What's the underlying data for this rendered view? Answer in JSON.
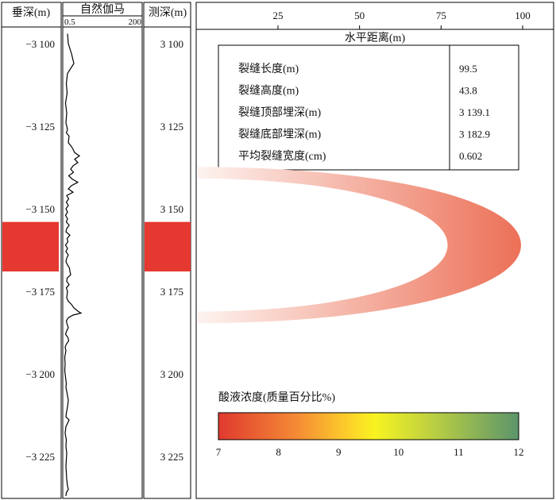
{
  "chart_data": {
    "type": "well-log-fracture-profile",
    "depth_axis": {
      "tvd_title": "垂深(m)",
      "md_title": "测深(m)",
      "tvd_ticks": [
        "−3 100",
        "−3 125",
        "−3 150",
        "−3 175",
        "−3 200",
        "−3 225"
      ],
      "md_ticks": [
        "3 100",
        "3 125",
        "3 150",
        "3 175",
        "3 200",
        "3 225"
      ],
      "tick_values": [
        3100,
        3125,
        3150,
        3175,
        3200,
        3225
      ],
      "range": [
        3096,
        3238
      ]
    },
    "gamma_track": {
      "title": "自然伽马",
      "min_label": "0.5",
      "max_label": "200",
      "range": [
        0.5,
        200
      ],
      "curve": [
        [
          3097,
          12
        ],
        [
          3100,
          14
        ],
        [
          3103,
          22
        ],
        [
          3106,
          28
        ],
        [
          3109,
          12
        ],
        [
          3112,
          9
        ],
        [
          3115,
          11
        ],
        [
          3118,
          7
        ],
        [
          3121,
          10
        ],
        [
          3124,
          8
        ],
        [
          3126,
          12
        ],
        [
          3127,
          9
        ],
        [
          3128,
          16
        ],
        [
          3129,
          15
        ],
        [
          3130,
          14
        ],
        [
          3131,
          21
        ],
        [
          3132,
          26
        ],
        [
          3133,
          30
        ],
        [
          3134,
          42
        ],
        [
          3135,
          30
        ],
        [
          3136,
          38
        ],
        [
          3137,
          26
        ],
        [
          3138,
          20
        ],
        [
          3139,
          27
        ],
        [
          3140,
          15
        ],
        [
          3141,
          24
        ],
        [
          3142,
          38
        ],
        [
          3143,
          22
        ],
        [
          3144,
          14
        ],
        [
          3145,
          26
        ],
        [
          3146,
          10
        ],
        [
          3147,
          15
        ],
        [
          3148,
          9
        ],
        [
          3149,
          14
        ],
        [
          3150,
          8
        ],
        [
          3151,
          12
        ],
        [
          3152,
          7
        ],
        [
          3153,
          12
        ],
        [
          3154,
          9
        ],
        [
          3155,
          16
        ],
        [
          3156,
          10
        ],
        [
          3157,
          8
        ],
        [
          3158,
          18
        ],
        [
          3159,
          11
        ],
        [
          3160,
          13
        ],
        [
          3161,
          7
        ],
        [
          3162,
          12
        ],
        [
          3163,
          8
        ],
        [
          3164,
          14
        ],
        [
          3165,
          10
        ],
        [
          3166,
          8
        ],
        [
          3167,
          12
        ],
        [
          3168,
          17
        ],
        [
          3169,
          18
        ],
        [
          3170,
          20
        ],
        [
          3171,
          11
        ],
        [
          3172,
          10
        ],
        [
          3173,
          16
        ],
        [
          3174,
          9
        ],
        [
          3175,
          12
        ],
        [
          3176,
          11
        ],
        [
          3177,
          10
        ],
        [
          3178,
          14
        ],
        [
          3179,
          22
        ],
        [
          3180,
          28
        ],
        [
          3181,
          38
        ],
        [
          3181.6,
          46
        ],
        [
          3182.2,
          26
        ],
        [
          3183,
          14
        ],
        [
          3184,
          9
        ],
        [
          3185,
          11
        ],
        [
          3186,
          14
        ],
        [
          3187,
          10
        ],
        [
          3188,
          7
        ],
        [
          3189,
          13
        ],
        [
          3190,
          15
        ],
        [
          3191,
          9
        ],
        [
          3192,
          6
        ],
        [
          3193,
          8
        ],
        [
          3195,
          5
        ],
        [
          3197,
          6
        ],
        [
          3199,
          5
        ],
        [
          3201,
          7
        ],
        [
          3203,
          9
        ],
        [
          3204,
          8
        ],
        [
          3206,
          11
        ],
        [
          3208,
          14
        ],
        [
          3210,
          12
        ],
        [
          3212,
          9
        ],
        [
          3213,
          8
        ],
        [
          3214,
          16
        ],
        [
          3215,
          12
        ],
        [
          3216,
          8
        ],
        [
          3218,
          6
        ],
        [
          3220,
          9
        ],
        [
          3222,
          8
        ],
        [
          3224,
          10
        ],
        [
          3226,
          9
        ],
        [
          3228,
          8
        ],
        [
          3230,
          9
        ],
        [
          3232,
          10
        ],
        [
          3234,
          12
        ],
        [
          3235,
          14
        ],
        [
          3236,
          9
        ],
        [
          3237,
          8
        ]
      ]
    },
    "perforation_interval": [
      3154,
      3169
    ],
    "horizontal_axis": {
      "title": "水平距离(m)",
      "ticks": [
        "25",
        "50",
        "75",
        "100"
      ],
      "tick_values": [
        25,
        50,
        75,
        100
      ],
      "range": [
        0,
        101
      ]
    },
    "fracture": {
      "top_depth": 3139.1,
      "bottom_depth": 3182.9,
      "tip_depth": 3161,
      "length": 99.5,
      "inner_tip": 77,
      "band_width_m": 3.5,
      "color_start": "#fdf3ef",
      "color_end": "#ec7057"
    },
    "info_table": [
      {
        "label": "裂缝长度(m)",
        "value": "99.5"
      },
      {
        "label": "裂缝高度(m)",
        "value": "43.8"
      },
      {
        "label": "裂缝顶部埋深(m)",
        "value": "3 139.1"
      },
      {
        "label": "裂缝底部埋深(m)",
        "value": "3 182.9"
      },
      {
        "label": "平均裂缝宽度(cm)",
        "value": "0.602"
      }
    ],
    "colorbar": {
      "title": "酸液浓度(质量百分比%)",
      "ticks": [
        "7",
        "8",
        "9",
        "10",
        "11",
        "12"
      ],
      "range": [
        7,
        12
      ],
      "stops": [
        {
          "value": 7,
          "color": "#e03a2f"
        },
        {
          "value": 8.3,
          "color": "#f48a35"
        },
        {
          "value": 9.2,
          "color": "#fdd22a"
        },
        {
          "value": 9.6,
          "color": "#f8f320"
        },
        {
          "value": 10.6,
          "color": "#b9ce43"
        },
        {
          "value": 12,
          "color": "#5c956b"
        }
      ]
    },
    "colors": {
      "perforation": "#e53830",
      "axis": "#000000"
    }
  }
}
